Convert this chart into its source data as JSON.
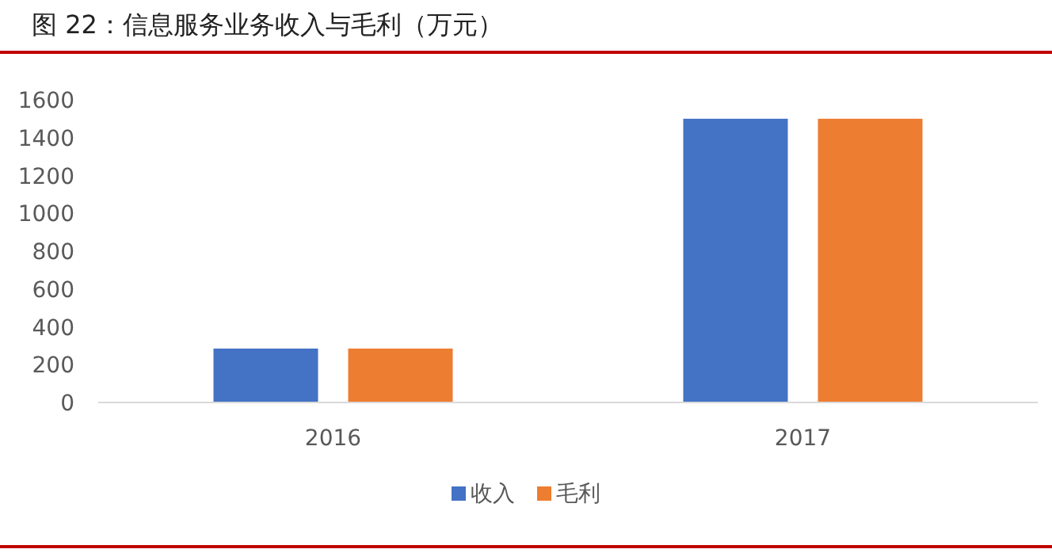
{
  "chart_data": {
    "type": "bar",
    "title": "图 22：信息服务业务收入与毛利（万元）",
    "categories": [
      "2016",
      "2017"
    ],
    "series": [
      {
        "name": "收入",
        "color": "#4472c4",
        "values": [
          285,
          1500
        ]
      },
      {
        "name": "毛利",
        "color": "#ed7d31",
        "values": [
          285,
          1500
        ]
      }
    ],
    "ylim": [
      0,
      1600
    ],
    "yticks": [
      0,
      200,
      400,
      600,
      800,
      1000,
      1200,
      1400,
      1600
    ],
    "grid": false,
    "legend": "bottom"
  }
}
